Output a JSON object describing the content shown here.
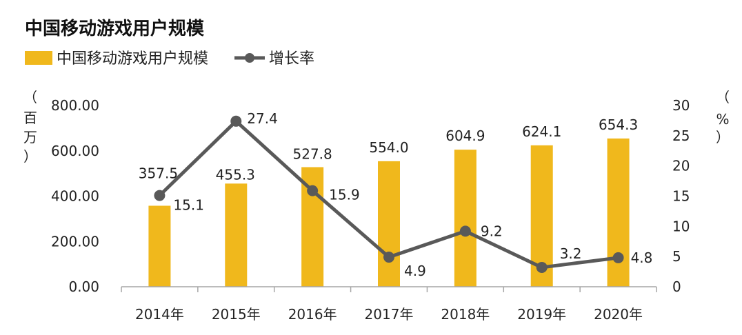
{
  "chart_data": {
    "type": "bar",
    "title": "中国移动游戏用户规模",
    "categories": [
      "2014年",
      "2015年",
      "2016年",
      "2017年",
      "2018年",
      "2019年",
      "2020年"
    ],
    "series": [
      {
        "name": "中国移动游戏用户规模",
        "type": "bar",
        "axis": "left",
        "values": [
          357.5,
          455.3,
          527.8,
          554.0,
          604.9,
          624.1,
          654.3
        ],
        "labels": [
          "357.5",
          "455.3",
          "527.8",
          "554.0",
          "604.9",
          "624.1",
          "654.3"
        ],
        "color": "#F0B81C"
      },
      {
        "name": "增长率",
        "type": "line",
        "axis": "right",
        "values": [
          15.1,
          27.4,
          15.9,
          4.9,
          9.2,
          3.2,
          4.8
        ],
        "labels": [
          "15.1",
          "27.4",
          "15.9",
          "4.9",
          "9.2",
          "3.2",
          "4.8"
        ],
        "color": "#595959"
      }
    ],
    "y_left": {
      "range": [
        0,
        800
      ],
      "ticks": [
        "0.00",
        "200.00",
        "400.00",
        "600.00",
        "800.00"
      ],
      "tick_values": [
        0,
        200,
        400,
        600,
        800
      ],
      "unit_chars": [
        "（",
        "百",
        "万",
        "）"
      ]
    },
    "y_right": {
      "range": [
        0,
        30
      ],
      "ticks": [
        "0",
        "5",
        "10",
        "15",
        "20",
        "25",
        "30"
      ],
      "tick_values": [
        0,
        5,
        10,
        15,
        20,
        25,
        30
      ],
      "unit_chars": [
        "（",
        "%",
        "）"
      ]
    },
    "grid": false,
    "legend_position": "top-left"
  }
}
